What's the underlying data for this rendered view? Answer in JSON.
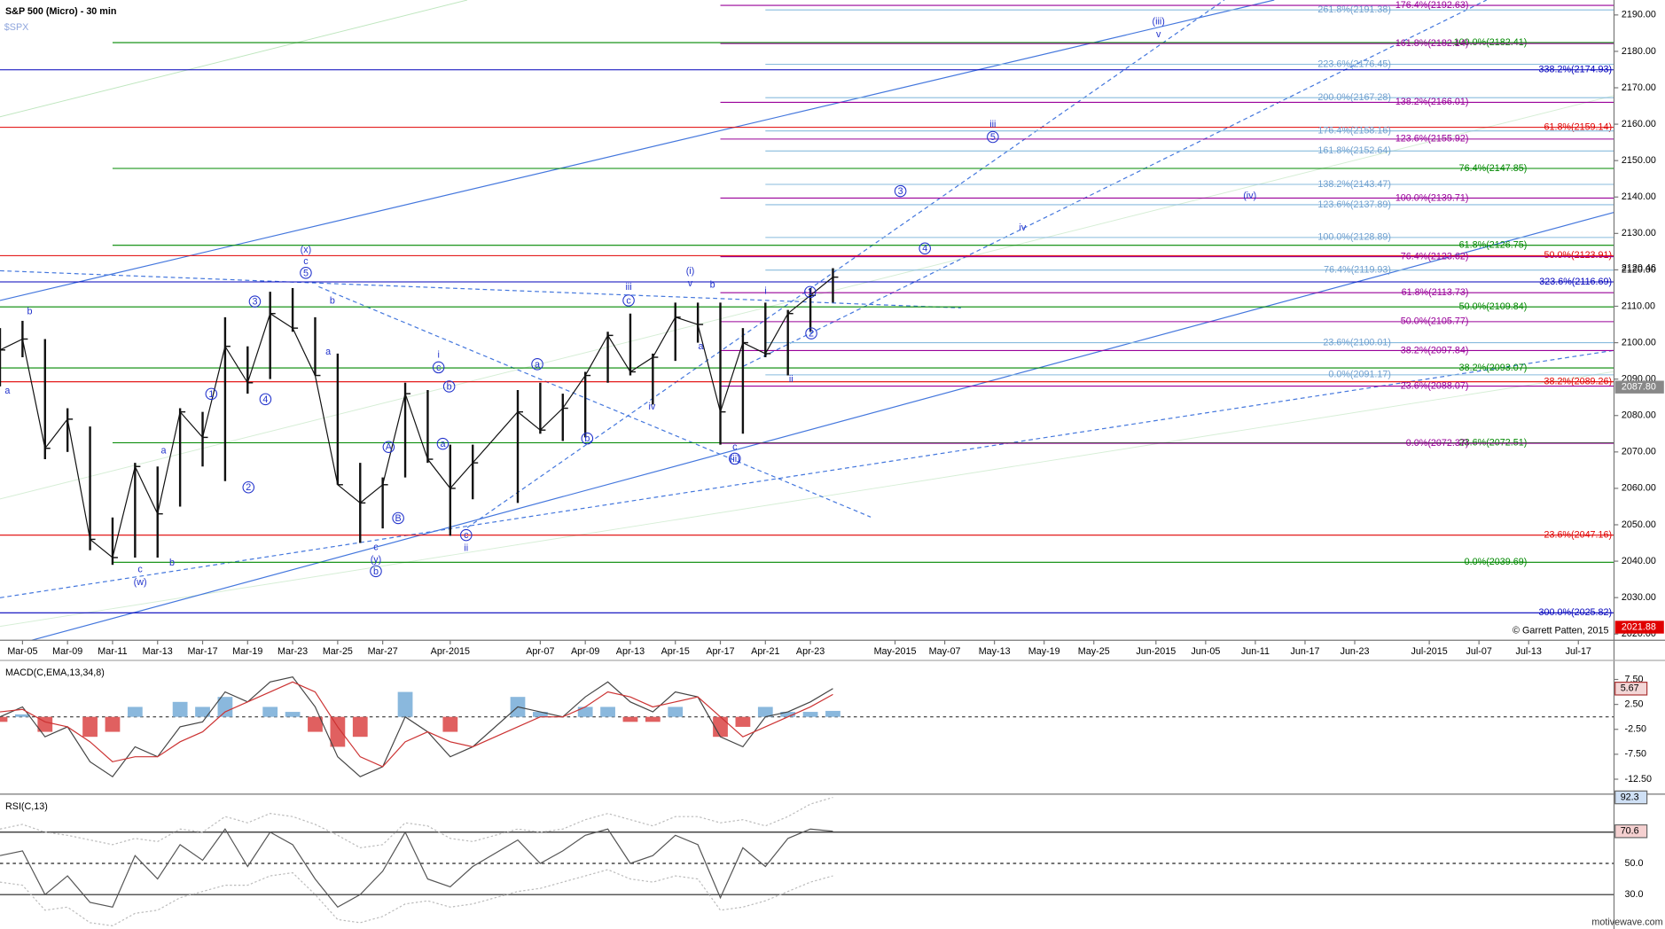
{
  "copyright": "© Garrett Patten, 2015",
  "watermark": "motivewave.com",
  "chart_data": [
    {
      "type": "ohlc",
      "title": "S&P 500 (Micro) - 30 min",
      "symbol": "$SPX",
      "color": "#111111",
      "x": [
        "2015-03-04",
        "2015-03-05",
        "2015-03-06",
        "2015-03-09",
        "2015-03-10",
        "2015-03-11",
        "2015-03-12",
        "2015-03-13",
        "2015-03-16",
        "2015-03-17",
        "2015-03-18",
        "2015-03-19",
        "2015-03-20",
        "2015-03-23",
        "2015-03-24",
        "2015-03-25",
        "2015-03-26",
        "2015-03-27",
        "2015-03-30",
        "2015-03-31",
        "2015-04-01",
        "2015-04-02",
        "2015-04-06",
        "2015-04-07",
        "2015-04-08",
        "2015-04-09",
        "2015-04-10",
        "2015-04-13",
        "2015-04-14",
        "2015-04-15",
        "2015-04-16",
        "2015-04-17",
        "2015-04-20",
        "2015-04-21",
        "2015-04-22",
        "2015-04-23",
        "2015-04-24"
      ],
      "high": [
        2104,
        2106,
        2101,
        2082,
        2077,
        2052,
        2067,
        2066,
        2082,
        2081,
        2107,
        2099,
        2114,
        2115,
        2107,
        2097,
        2067,
        2063,
        2089,
        2087,
        2072,
        2072,
        2087,
        2089,
        2086,
        2092,
        2103,
        2108,
        2097,
        2111,
        2111,
        2111,
        2104,
        2111,
        2109,
        2115,
        2120.46
      ],
      "low": [
        2088,
        2096,
        2068,
        2070,
        2043,
        2039,
        2041,
        2041,
        2055,
        2066,
        2062,
        2086,
        2090,
        2103,
        2091,
        2061,
        2045,
        2049,
        2063,
        2067,
        2047,
        2057,
        2056,
        2075,
        2073,
        2074,
        2089,
        2091,
        2083,
        2095,
        2100,
        2072,
        2075,
        2096,
        2091,
        2103,
        2111
      ],
      "close": [
        2098,
        2101,
        2071,
        2079,
        2046,
        2041,
        2066,
        2053,
        2081,
        2074,
        2099,
        2089,
        2108,
        2104,
        2091,
        2061,
        2056,
        2061,
        2086,
        2068,
        2060,
        2067,
        2081,
        2076,
        2082,
        2091,
        2102,
        2092,
        2096,
        2107,
        2105,
        2081,
        2100,
        2097,
        2108,
        2113,
        2118
      ],
      "xlim": [
        "2015-03-04",
        "2015-07-21"
      ],
      "xticks": [
        {
          "value": "2015-03-05",
          "label": "Mar-05"
        },
        {
          "value": "2015-03-09",
          "label": "Mar-09"
        },
        {
          "value": "2015-03-11",
          "label": "Mar-11"
        },
        {
          "value": "2015-03-13",
          "label": "Mar-13"
        },
        {
          "value": "2015-03-17",
          "label": "Mar-17"
        },
        {
          "value": "2015-03-19",
          "label": "Mar-19"
        },
        {
          "value": "2015-03-23",
          "label": "Mar-23"
        },
        {
          "value": "2015-03-25",
          "label": "Mar-25"
        },
        {
          "value": "2015-03-27",
          "label": "Mar-27"
        },
        {
          "value": "2015-04-01",
          "label": "Apr-2015"
        },
        {
          "value": "2015-04-07",
          "label": "Apr-07"
        },
        {
          "value": "2015-04-09",
          "label": "Apr-09"
        },
        {
          "value": "2015-04-13",
          "label": "Apr-13"
        },
        {
          "value": "2015-04-15",
          "label": "Apr-15"
        },
        {
          "value": "2015-04-17",
          "label": "Apr-17"
        },
        {
          "value": "2015-04-21",
          "label": "Apr-21"
        },
        {
          "value": "2015-04-23",
          "label": "Apr-23"
        },
        {
          "value": "2015-05-01",
          "label": "May-2015"
        },
        {
          "value": "2015-05-07",
          "label": "May-07"
        },
        {
          "value": "2015-05-13",
          "label": "May-13"
        },
        {
          "value": "2015-05-19",
          "label": "May-19"
        },
        {
          "value": "2015-05-25",
          "label": "May-25"
        },
        {
          "value": "2015-06-01",
          "label": "Jun-2015"
        },
        {
          "value": "2015-06-05",
          "label": "Jun-05"
        },
        {
          "value": "2015-06-11",
          "label": "Jun-11"
        },
        {
          "value": "2015-06-17",
          "label": "Jun-17"
        },
        {
          "value": "2015-06-23",
          "label": "Jun-23"
        },
        {
          "value": "2015-07-01",
          "label": "Jul-2015"
        },
        {
          "value": "2015-07-07",
          "label": "Jul-07"
        },
        {
          "value": "2015-07-13",
          "label": "Jul-13"
        },
        {
          "value": "2015-07-17",
          "label": "Jul-17"
        }
      ],
      "ylim": [
        2018.3,
        2194.1
      ],
      "yticks": [
        {
          "value": 2020,
          "label": "2020.00"
        },
        {
          "value": 2030,
          "label": "2030.00"
        },
        {
          "value": 2040,
          "label": "2040.00"
        },
        {
          "value": 2050,
          "label": "2050.00"
        },
        {
          "value": 2060,
          "label": "2060.00"
        },
        {
          "value": 2070,
          "label": "2070.00"
        },
        {
          "value": 2080,
          "label": "2080.00"
        },
        {
          "value": 2090,
          "label": "2090.00"
        },
        {
          "value": 2100,
          "label": "2100.00"
        },
        {
          "value": 2110,
          "label": "2110.00"
        },
        {
          "value": 2120,
          "label": "2120.00"
        },
        {
          "value": 2130,
          "label": "2130.00"
        },
        {
          "value": 2140,
          "label": "2140.00"
        },
        {
          "value": 2150,
          "label": "2150.00"
        },
        {
          "value": 2160,
          "label": "2160.00"
        },
        {
          "value": 2170,
          "label": "2170.00"
        },
        {
          "value": 2180,
          "label": "2180.00"
        },
        {
          "value": 2190,
          "label": "2190.00"
        }
      ],
      "axis_markers": [
        {
          "value": 2120.46
        },
        {
          "value": 2087.8,
          "label": "2087.80",
          "color": "#888888"
        },
        {
          "value": 2021.88,
          "color": "#e00000"
        }
      ],
      "levels": [
        {
          "value": 2192.63,
          "label": "176.4%(2192.63)",
          "color": "#990099",
          "from": "2015-04-17"
        },
        {
          "value": 2191.38,
          "label": "261.8%(2191.38)",
          "color": "#88bbdd",
          "from": "2015-04-21"
        },
        {
          "value": 2182.41,
          "label": "100.0%(2182.41)",
          "color": "#008800",
          "from": "2015-03-11"
        },
        {
          "value": 2182.14,
          "label": "161.8%(2182.14)",
          "color": "#990099",
          "from": "2015-04-17"
        },
        {
          "value": 2176.45,
          "label": "223.6%(2176.45)",
          "color": "#88bbdd",
          "from": "2015-04-21"
        },
        {
          "value": 2174.93,
          "label": "338.2%(2174.93)",
          "color": "#0000bb"
        },
        {
          "value": 2167.28,
          "label": "200.0%(2167.28)",
          "color": "#88bbdd",
          "from": "2015-04-21"
        },
        {
          "value": 2166.01,
          "label": "138.2%(2166.01)",
          "color": "#990099",
          "from": "2015-04-17"
        },
        {
          "value": 2159.14,
          "label": "61.8%(2159.14)",
          "color": "#e00000"
        },
        {
          "value": 2158.16,
          "label": "176.4%(2158.16)",
          "color": "#88bbdd",
          "from": "2015-04-21"
        },
        {
          "value": 2155.92,
          "label": "123.6%(2155.92)",
          "color": "#990099",
          "from": "2015-04-17"
        },
        {
          "value": 2152.64,
          "label": "161.8%(2152.64)",
          "color": "#88bbdd",
          "from": "2015-04-21"
        },
        {
          "value": 2147.85,
          "label": "76.4%(2147.85)",
          "color": "#008800",
          "from": "2015-03-11"
        },
        {
          "value": 2143.47,
          "label": "138.2%(2143.47)",
          "color": "#88bbdd",
          "from": "2015-04-21"
        },
        {
          "value": 2139.71,
          "label": "100.0%(2139.71)",
          "color": "#990099",
          "from": "2015-04-17"
        },
        {
          "value": 2137.89,
          "label": "123.6%(2137.89)",
          "color": "#88bbdd",
          "from": "2015-04-21"
        },
        {
          "value": 2128.89,
          "label": "100.0%(2128.89)",
          "color": "#88bbdd",
          "from": "2015-04-21"
        },
        {
          "value": 2126.75,
          "label": "61.8%(2126.75)",
          "color": "#008800",
          "from": "2015-03-11"
        },
        {
          "value": 2123.91,
          "label": "50.0%(2123.91)",
          "color": "#e00000"
        },
        {
          "value": 2123.62,
          "label": "76.4%(2123.62)",
          "color": "#990099",
          "from": "2015-04-17"
        },
        {
          "value": 2119.93,
          "label": "76.4%(2119.93)",
          "color": "#88bbdd",
          "from": "2015-04-21"
        },
        {
          "value": 2116.69,
          "label": "323.6%(2116.69)",
          "color": "#0000bb"
        },
        {
          "value": 2113.73,
          "label": "61.8%(2113.73)",
          "color": "#990099",
          "from": "2015-04-17"
        },
        {
          "value": 2109.84,
          "label": "50.0%(2109.84)",
          "color": "#008800"
        },
        {
          "value": 2105.77,
          "label": "50.0%(2105.77)",
          "color": "#990099",
          "from": "2015-04-17"
        },
        {
          "value": 2100.01,
          "label": "23.6%(2100.01)",
          "color": "#88bbdd",
          "from": "2015-04-21"
        },
        {
          "value": 2097.84,
          "label": "38.2%(2097.84)",
          "color": "#990099",
          "from": "2015-04-17"
        },
        {
          "value": 2093.07,
          "label": "38.2%(2093.07)",
          "color": "#008800"
        },
        {
          "value": 2091.17,
          "label": "0.0%(2091.17)",
          "color": "#88bbdd",
          "from": "2015-04-21"
        },
        {
          "value": 2089.26,
          "label": "38.2%(2089.26)",
          "color": "#e00000"
        },
        {
          "value": 2088.07,
          "label": "23.6%(2088.07)",
          "color": "#990099",
          "from": "2015-04-17"
        },
        {
          "value": 2072.51,
          "label": "23.6%(2072.51)",
          "color": "#008800",
          "from": "2015-03-11"
        },
        {
          "value": 2072.37,
          "label": "0.0%(2072.37)",
          "color": "#990099",
          "from": "2015-04-17"
        },
        {
          "value": 2047.16,
          "label": "23.6%(2047.16)",
          "color": "#e00000"
        },
        {
          "value": 2039.69,
          "label": "0.0%(2039.69)",
          "color": "#008800",
          "from": "2015-03-11"
        },
        {
          "value": 2025.82,
          "label": "300.0%(2025.82)",
          "color": "#0000bb"
        }
      ],
      "wave_labels": [
        "b",
        "a",
        "c",
        "(w)",
        "b",
        "a",
        "1",
        "2",
        "3",
        "4",
        "5",
        "c",
        "(x)",
        "b",
        "a",
        "A",
        "B",
        "c",
        "(y)",
        "b",
        "i",
        "c",
        "b",
        "a",
        "c",
        "ii",
        "a",
        "b",
        "iii",
        "c",
        "iv",
        "(i)",
        "v",
        "b",
        "a",
        "c",
        "(ii)",
        "i",
        "1",
        "2",
        "ii",
        "3",
        "4",
        "iii",
        "5",
        "iv",
        "(iv)",
        "(iii)",
        "v"
      ]
    },
    {
      "type": "macd",
      "title": "MACD(C,EMA,13,34,8)",
      "series": [
        {
          "color": "#444444",
          "values": [
            0,
            2,
            -4,
            -2,
            -9,
            -12,
            -6,
            -8,
            -2,
            -1,
            5,
            3,
            7,
            8,
            2,
            -8,
            -12,
            -10,
            0,
            -3,
            -8,
            -6,
            2,
            1,
            0,
            4,
            7,
            3,
            1,
            5,
            4,
            -4,
            -6,
            0,
            1,
            3,
            5.67
          ]
        },
        {
          "color": "#cc3333",
          "values": [
            1,
            1.5,
            -1,
            -2,
            -5,
            -9,
            -8,
            -8,
            -5,
            -3,
            1,
            3,
            5,
            7,
            5,
            -2,
            -8,
            -10,
            -5,
            -3,
            -5,
            -6,
            -2,
            0,
            0,
            2,
            5,
            4,
            2,
            3,
            4,
            0,
            -4,
            -2,
            0,
            2,
            4.5
          ]
        }
      ],
      "histogram": {
        "up_color": "#8ab8dd",
        "down_color": "#e06060",
        "values": [
          -1,
          0.5,
          -3,
          0,
          -4,
          -3,
          2,
          0,
          3,
          2,
          4,
          0,
          2,
          1,
          -3,
          -6,
          -4,
          0,
          5,
          0,
          -3,
          0,
          4,
          1,
          0,
          2,
          2,
          -1,
          -1,
          2,
          0,
          -4,
          -2,
          2,
          1,
          1,
          1.2
        ]
      },
      "ylim": [
        -15.5,
        10.9
      ],
      "yticks": [
        {
          "value": -12.5,
          "label": "-12.50"
        },
        {
          "value": -7.5,
          "label": "-7.50"
        },
        {
          "value": -2.5,
          "label": "-2.50"
        },
        {
          "value": 2.5,
          "label": "2.50"
        },
        {
          "value": 7.5,
          "label": "7.50"
        }
      ],
      "zero_line": true,
      "last_value": 5.67
    },
    {
      "type": "rsi",
      "title": "RSI(C,13)",
      "series": [
        {
          "color": "#555555",
          "values": [
            55,
            58,
            30,
            42,
            25,
            22,
            55,
            40,
            62,
            52,
            72,
            48,
            70,
            62,
            40,
            22,
            30,
            45,
            70,
            40,
            35,
            48,
            65,
            50,
            58,
            68,
            72,
            50,
            55,
            68,
            62,
            28,
            60,
            48,
            66,
            72,
            70.6
          ]
        },
        {
          "color": "#bbbbbb",
          "dashed": true,
          "values": [
            72,
            75,
            70,
            68,
            65,
            62,
            66,
            64,
            72,
            70,
            80,
            76,
            82,
            80,
            75,
            68,
            60,
            62,
            76,
            74,
            66,
            64,
            72,
            70,
            72,
            78,
            82,
            78,
            74,
            80,
            80,
            76,
            78,
            74,
            80,
            88,
            92.3
          ]
        },
        {
          "color": "#bbbbbb",
          "dashed": true,
          "values": [
            38,
            36,
            20,
            22,
            12,
            10,
            18,
            20,
            28,
            32,
            36,
            36,
            42,
            44,
            30,
            14,
            12,
            16,
            24,
            26,
            22,
            24,
            32,
            34,
            38,
            42,
            46,
            40,
            38,
            42,
            40,
            20,
            22,
            26,
            32,
            38,
            42
          ]
        }
      ],
      "ylim": [
        10,
        93
      ],
      "yticks": [
        {
          "value": 30,
          "label": "30.0"
        },
        {
          "value": 50,
          "label": "50.0"
        },
        {
          "value": 70,
          "label": "70.0"
        }
      ],
      "markers": [
        {
          "value": 92.3,
          "color": "#cfe0f5"
        },
        {
          "value": 70.6,
          "color": "#f5d0d0"
        }
      ]
    }
  ]
}
